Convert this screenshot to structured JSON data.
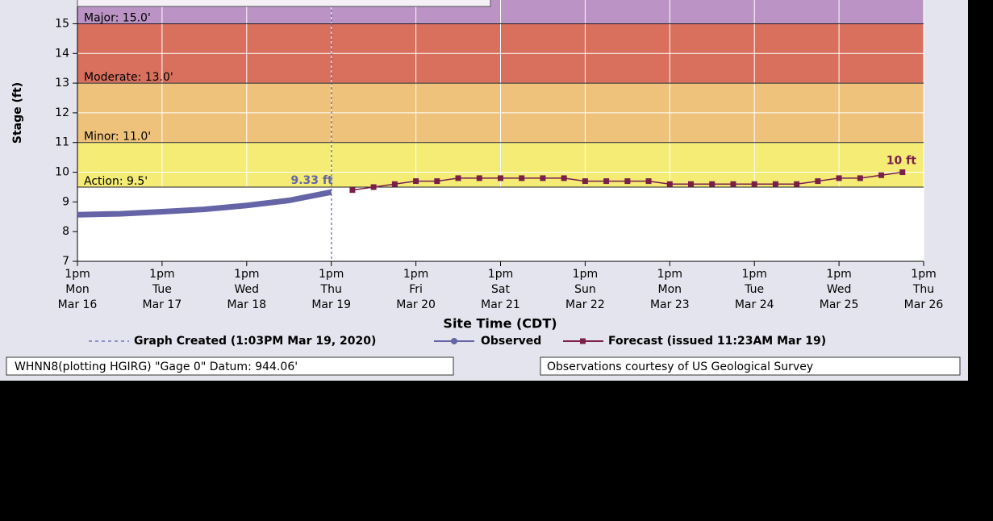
{
  "chart_data": {
    "type": "line",
    "ylabel": "Stage (ft)",
    "xlabel": "Site Time (CDT)",
    "ylim": [
      7,
      15.8
    ],
    "yticks": [
      7,
      8,
      9,
      10,
      11,
      12,
      13,
      14,
      15
    ],
    "xlim": [
      "2020-03-16T13:00",
      "2020-03-26T13:00"
    ],
    "xticks": [
      {
        "value": "2020-03-16T13:00",
        "label": [
          "1pm",
          "Mon",
          "Mar 16"
        ]
      },
      {
        "value": "2020-03-17T13:00",
        "label": [
          "1pm",
          "Tue",
          "Mar 17"
        ]
      },
      {
        "value": "2020-03-18T13:00",
        "label": [
          "1pm",
          "Wed",
          "Mar 18"
        ]
      },
      {
        "value": "2020-03-19T13:00",
        "label": [
          "1pm",
          "Thu",
          "Mar 19"
        ]
      },
      {
        "value": "2020-03-20T13:00",
        "label": [
          "1pm",
          "Fri",
          "Mar 20"
        ]
      },
      {
        "value": "2020-03-21T13:00",
        "label": [
          "1pm",
          "Sat",
          "Mar 21"
        ]
      },
      {
        "value": "2020-03-22T13:00",
        "label": [
          "1pm",
          "Sun",
          "Mar 22"
        ]
      },
      {
        "value": "2020-03-23T13:00",
        "label": [
          "1pm",
          "Mon",
          "Mar 23"
        ]
      },
      {
        "value": "2020-03-24T13:00",
        "label": [
          "1pm",
          "Tue",
          "Mar 24"
        ]
      },
      {
        "value": "2020-03-25T13:00",
        "label": [
          "1pm",
          "Wed",
          "Mar 25"
        ]
      },
      {
        "value": "2020-03-26T13:00",
        "label": [
          "1pm",
          "Thu",
          "Mar 26"
        ]
      }
    ],
    "grid": true,
    "flood_stages": [
      {
        "label": "Action: 9.5'",
        "value": 9.5,
        "color": "#f4ec74"
      },
      {
        "label": "Minor: 11.0'",
        "value": 11,
        "color": "#eec27a"
      },
      {
        "label": "Moderate: 13.0'",
        "value": 13,
        "color": "#d9705e"
      },
      {
        "label": "Major: 15.0'",
        "value": 15,
        "color": "#bb93c4"
      }
    ],
    "created": {
      "x": "2020-03-19T13:03",
      "label": "Graph Created (1:03PM Mar 19, 2020)"
    },
    "series": [
      {
        "name": "Observed",
        "color": "#6464a6",
        "x": [
          "2020-03-16T13:00",
          "2020-03-17T01:00",
          "2020-03-17T13:00",
          "2020-03-18T01:00",
          "2020-03-18T13:00",
          "2020-03-19T01:00",
          "2020-03-19T13:00"
        ],
        "values": [
          8.57,
          8.6,
          8.67,
          8.75,
          8.88,
          9.05,
          9.33
        ],
        "end_label": "9.33 ft"
      },
      {
        "name": "Forecast (issued 11:23AM Mar 19)",
        "color": "#7a1f4a",
        "x": [
          "2020-03-19T19:00",
          "2020-03-20T01:00",
          "2020-03-20T07:00",
          "2020-03-20T13:00",
          "2020-03-20T19:00",
          "2020-03-21T01:00",
          "2020-03-21T07:00",
          "2020-03-21T13:00",
          "2020-03-21T19:00",
          "2020-03-22T01:00",
          "2020-03-22T07:00",
          "2020-03-22T13:00",
          "2020-03-22T19:00",
          "2020-03-23T01:00",
          "2020-03-23T07:00",
          "2020-03-23T13:00",
          "2020-03-23T19:00",
          "2020-03-24T01:00",
          "2020-03-24T07:00",
          "2020-03-24T13:00",
          "2020-03-24T19:00",
          "2020-03-25T01:00",
          "2020-03-25T07:00",
          "2020-03-25T13:00",
          "2020-03-25T19:00",
          "2020-03-26T01:00",
          "2020-03-26T07:00"
        ],
        "values": [
          9.4,
          9.5,
          9.6,
          9.7,
          9.7,
          9.8,
          9.8,
          9.8,
          9.8,
          9.8,
          9.8,
          9.7,
          9.7,
          9.7,
          9.7,
          9.6,
          9.6,
          9.6,
          9.6,
          9.6,
          9.6,
          9.6,
          9.7,
          9.8,
          9.8,
          9.9,
          10
        ],
        "end_label": "10 ft"
      }
    ],
    "footer_left": "WHNN8(plotting HGIRG) \"Gage 0\" Datum: 944.06'",
    "footer_right": "Observations courtesy of US Geological Survey"
  }
}
